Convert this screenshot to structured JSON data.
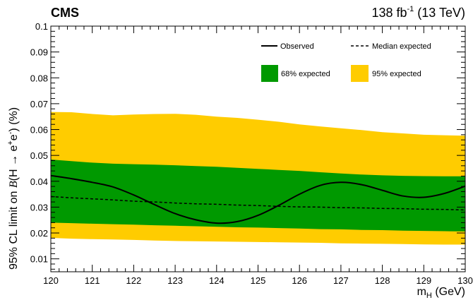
{
  "header": {
    "experiment": "CMS",
    "lumi_value": "138 fb",
    "lumi_exponent": "-1",
    "lumi_energy": " (13 TeV)"
  },
  "chart_data": {
    "type": "line",
    "xlabel_main": "m",
    "xlabel_sub": "H",
    "xlabel_unit": " (GeV)",
    "ylabel_part1": "95% CL limit on ",
    "ylabel_B": "B",
    "ylabel_part2": "(H → e",
    "ylabel_sup1": "+",
    "ylabel_part3": "e",
    "ylabel_sup2": "-",
    "ylabel_part4": ")   (%)",
    "xlim": [
      120,
      130
    ],
    "ylim": [
      0.005,
      0.1
    ],
    "x_ticks": [
      120,
      121,
      122,
      123,
      124,
      125,
      126,
      127,
      128,
      129,
      130
    ],
    "y_ticks": [
      {
        "value": 0.01,
        "label": "0.01"
      },
      {
        "value": 0.02,
        "label": "0.02"
      },
      {
        "value": 0.03,
        "label": "0.03"
      },
      {
        "value": 0.04,
        "label": "0.04"
      },
      {
        "value": 0.05,
        "label": "0.05"
      },
      {
        "value": 0.06,
        "label": "0.06"
      },
      {
        "value": 0.07,
        "label": "0.07"
      },
      {
        "value": 0.08,
        "label": "0.08"
      },
      {
        "value": 0.09,
        "label": "0.09"
      },
      {
        "value": 0.1,
        "label": "0.1"
      }
    ],
    "legend": {
      "observed": "Observed",
      "median": "Median expected",
      "band68": "68% expected",
      "band95": "95% expected"
    },
    "colors": {
      "band68": "#009900",
      "band95": "#ffcc00",
      "line": "#000000"
    },
    "x": [
      120,
      120.5,
      121,
      121.5,
      122,
      122.5,
      123,
      123.5,
      124,
      124.5,
      125,
      125.5,
      126,
      126.5,
      127,
      127.5,
      128,
      128.5,
      129,
      129.5,
      130
    ],
    "series": [
      {
        "name": "Observed",
        "values": [
          0.0422,
          0.041,
          0.0396,
          0.0378,
          0.0347,
          0.031,
          0.0275,
          0.0251,
          0.0238,
          0.0244,
          0.0268,
          0.0307,
          0.035,
          0.0384,
          0.0396,
          0.0387,
          0.0365,
          0.0343,
          0.0338,
          0.0353,
          0.0381
        ]
      },
      {
        "name": "Median expected",
        "values": [
          0.0341,
          0.0336,
          0.0332,
          0.0328,
          0.0323,
          0.032,
          0.0316,
          0.0313,
          0.0311,
          0.0308,
          0.0306,
          0.0303,
          0.0301,
          0.03,
          0.0298,
          0.0297,
          0.0295,
          0.0294,
          0.0292,
          0.0291,
          0.0289
        ]
      }
    ],
    "band95_upper": [
      0.0668,
      0.0667,
      0.066,
      0.0655,
      0.0658,
      0.066,
      0.0661,
      0.0657,
      0.065,
      0.0645,
      0.0638,
      0.063,
      0.062,
      0.0612,
      0.0605,
      0.0598,
      0.059,
      0.0585,
      0.058,
      0.0578,
      0.0576
    ],
    "band68_upper": [
      0.0484,
      0.0478,
      0.0472,
      0.0468,
      0.0466,
      0.0464,
      0.0462,
      0.0459,
      0.0456,
      0.0452,
      0.0448,
      0.0444,
      0.044,
      0.0435,
      0.043,
      0.0426,
      0.0423,
      0.0421,
      0.042,
      0.0419,
      0.0419
    ],
    "band68_lower": [
      0.024,
      0.0238,
      0.0236,
      0.0234,
      0.0232,
      0.023,
      0.0228,
      0.0226,
      0.0224,
      0.0222,
      0.0221,
      0.0219,
      0.0217,
      0.0215,
      0.0214,
      0.0212,
      0.0211,
      0.0209,
      0.0208,
      0.0207,
      0.0206
    ],
    "band95_lower": [
      0.0181,
      0.0178,
      0.0176,
      0.0175,
      0.0173,
      0.0171,
      0.0169,
      0.0168,
      0.0167,
      0.0166,
      0.0165,
      0.0164,
      0.0163,
      0.0162,
      0.016,
      0.0159,
      0.0158,
      0.0157,
      0.0156,
      0.0155,
      0.0155
    ]
  }
}
